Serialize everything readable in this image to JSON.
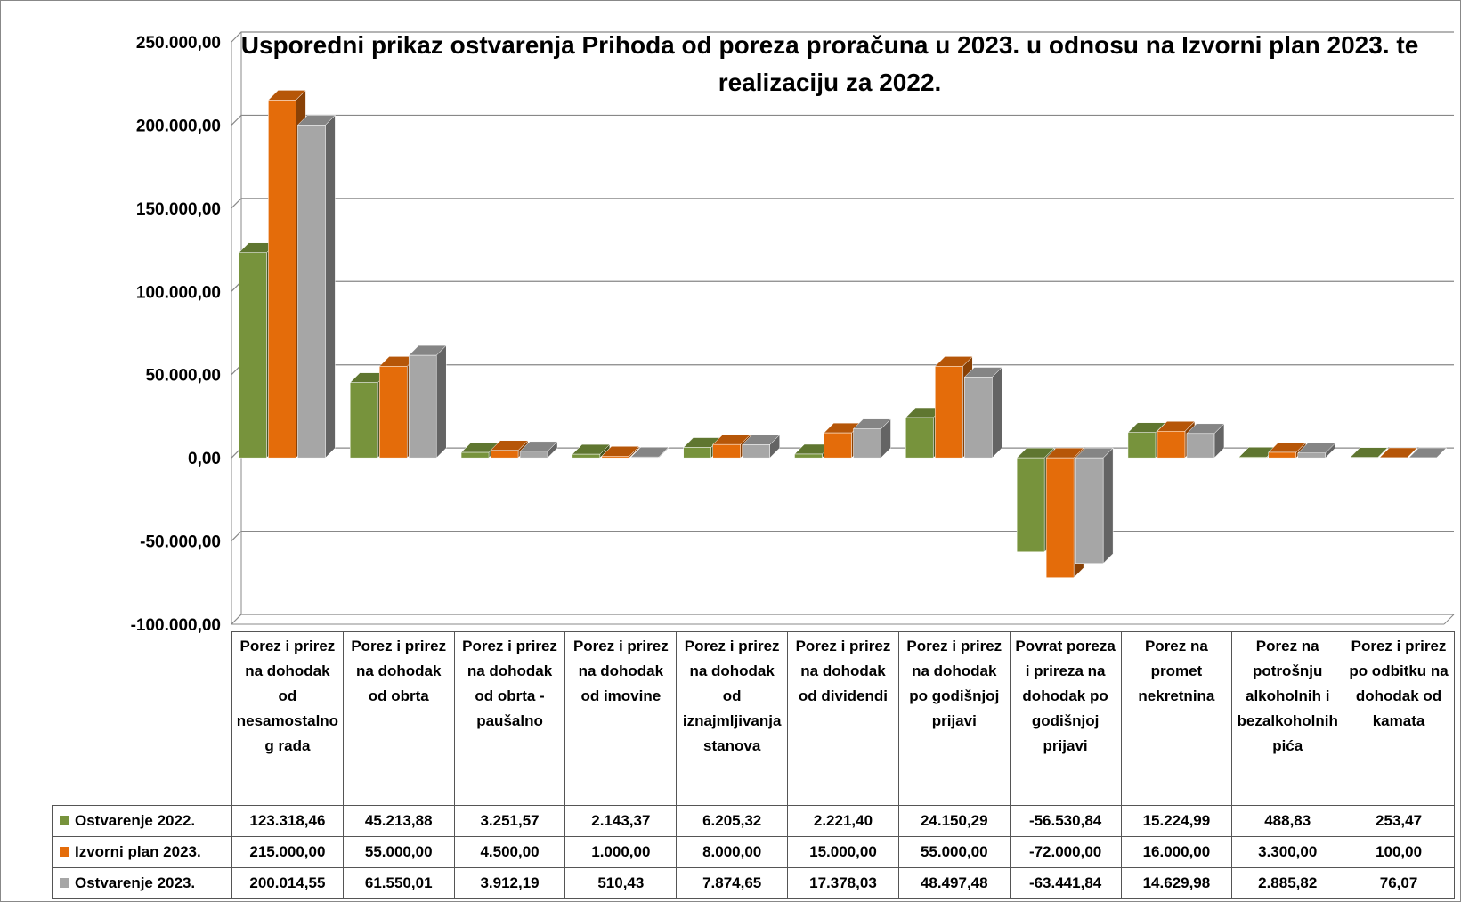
{
  "chart_data": {
    "type": "bar3d",
    "title": "Usporedni prikaz ostvarenja Prihoda od poreza proračuna u 2023. u odnosu na Izvorni plan 2023. te realizaciju za 2022.",
    "categories": [
      "Porez i prirez na dohodak od nesamostalnog rada",
      "Porez i prirez na dohodak od obrta",
      "Porez i prirez na dohodak od obrta - paušalno",
      "Porez i prirez na dohodak od imovine",
      "Porez i prirez na dohodak od iznajmljivanja stanova",
      "Porez i prirez na dohodak od dividendi",
      "Porez i prirez na dohodak po godišnjoj prijavi",
      "Povrat poreza i prireza na dohodak po godišnjoj prijavi",
      "Porez na promet nekretnina",
      "Porez na potrošnju alkoholnih i bezalkoholnih pića",
      "Porez i prirez po odbitku na dohodak od kamata"
    ],
    "series": [
      {
        "name": "Ostvarenje 2022.",
        "color": "#77933c",
        "values": [
          123318.46,
          45213.88,
          3251.57,
          2143.37,
          6205.32,
          2221.4,
          24150.29,
          -56530.84,
          15224.99,
          488.83,
          253.47
        ],
        "value_labels": [
          "123.318,46",
          "45.213,88",
          "3.251,57",
          "2.143,37",
          "6.205,32",
          "2.221,40",
          "24.150,29",
          "-56.530,84",
          "15.224,99",
          "488,83",
          "253,47"
        ]
      },
      {
        "name": "Izvorni plan 2023.",
        "color": "#e46c0a",
        "values": [
          215000.0,
          55000.0,
          4500.0,
          1000.0,
          8000.0,
          15000.0,
          55000.0,
          -72000.0,
          16000.0,
          3300.0,
          100.0
        ],
        "value_labels": [
          "215.000,00",
          "55.000,00",
          "4.500,00",
          "1.000,00",
          "8.000,00",
          "15.000,00",
          "55.000,00",
          "-72.000,00",
          "16.000,00",
          "3.300,00",
          "100,00"
        ]
      },
      {
        "name": "Ostvarenje 2023.",
        "color": "#a6a6a6",
        "values": [
          200014.55,
          61550.01,
          3912.19,
          510.43,
          7874.65,
          17378.03,
          48497.48,
          -63441.84,
          14629.98,
          2885.82,
          76.07
        ],
        "value_labels": [
          "200.014,55",
          "61.550,01",
          "3.912,19",
          "510,43",
          "7.874,65",
          "17.378,03",
          "48.497,48",
          "-63.441,84",
          "14.629,98",
          "2.885,82",
          "76,07"
        ]
      }
    ],
    "ylim": [
      -100000,
      250000
    ],
    "yticks": [
      {
        "value": -100000,
        "label": "-100.000,00"
      },
      {
        "value": -50000,
        "label": "-50.000,00"
      },
      {
        "value": 0,
        "label": "0,00"
      },
      {
        "value": 50000,
        "label": "50.000,00"
      },
      {
        "value": 100000,
        "label": "100.000,00"
      },
      {
        "value": 150000,
        "label": "150.000,00"
      },
      {
        "value": 200000,
        "label": "200.000,00"
      },
      {
        "value": 250000,
        "label": "250.000,00"
      }
    ],
    "grid": true,
    "data_table": true
  }
}
